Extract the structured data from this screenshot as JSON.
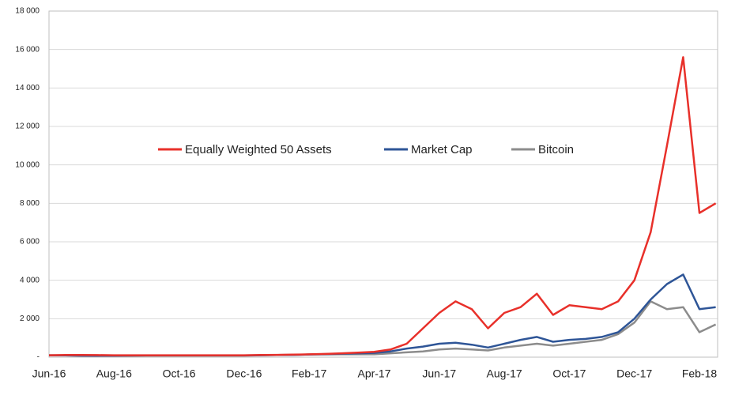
{
  "chart_data": {
    "type": "line",
    "categories": [
      "Jun-16",
      null,
      null,
      null,
      "Aug-16",
      null,
      null,
      null,
      "Oct-16",
      null,
      null,
      null,
      "Dec-16",
      null,
      null,
      null,
      "Feb-17",
      null,
      null,
      null,
      "Apr-17",
      null,
      null,
      null,
      "Jun-17",
      null,
      null,
      null,
      "Aug-17",
      null,
      null,
      null,
      "Oct-17",
      null,
      null,
      null,
      "Dec-17",
      null,
      null,
      null,
      "Feb-18",
      null
    ],
    "series": [
      {
        "name": "Equally Weighted 50 Assets",
        "color": "#e8302a",
        "values": [
          100,
          110,
          110,
          105,
          100,
          100,
          100,
          100,
          100,
          100,
          100,
          100,
          100,
          110,
          120,
          130,
          150,
          170,
          200,
          240,
          280,
          400,
          700,
          1500,
          2300,
          2900,
          2500,
          1500,
          2300,
          2600,
          3300,
          2200,
          2700,
          2600,
          2500,
          2900,
          4000,
          6500,
          11000,
          15600,
          7500,
          8000
        ]
      },
      {
        "name": "Market Cap",
        "color": "#2e5597",
        "values": [
          100,
          90,
          80,
          75,
          80,
          85,
          90,
          90,
          90,
          90,
          90,
          90,
          90,
          100,
          110,
          120,
          140,
          160,
          180,
          200,
          220,
          300,
          450,
          550,
          700,
          750,
          650,
          500,
          700,
          900,
          1050,
          800,
          900,
          950,
          1050,
          1300,
          2000,
          3000,
          3800,
          4300,
          2500,
          2600
        ]
      },
      {
        "name": "Bitcoin",
        "color": "#8c8c8c",
        "values": [
          100,
          90,
          80,
          70,
          70,
          75,
          80,
          80,
          80,
          80,
          80,
          80,
          80,
          100,
          110,
          120,
          140,
          145,
          150,
          150,
          150,
          200,
          250,
          300,
          400,
          450,
          400,
          350,
          500,
          600,
          700,
          600,
          700,
          800,
          900,
          1200,
          1800,
          2900,
          2500,
          2600,
          1300,
          1700
        ]
      }
    ],
    "ylim": [
      0,
      18000
    ],
    "yticks": [
      {
        "value": 0,
        "label": "-"
      },
      {
        "value": 2000,
        "label": "2 000"
      },
      {
        "value": 4000,
        "label": "4 000"
      },
      {
        "value": 6000,
        "label": "6 000"
      },
      {
        "value": 8000,
        "label": "8 000"
      },
      {
        "value": 10000,
        "label": "10 000"
      },
      {
        "value": 12000,
        "label": "12 000"
      },
      {
        "value": 14000,
        "label": "14 000"
      },
      {
        "value": 16000,
        "label": "16 000"
      },
      {
        "value": 18000,
        "label": "18 000"
      }
    ],
    "grid": true
  }
}
